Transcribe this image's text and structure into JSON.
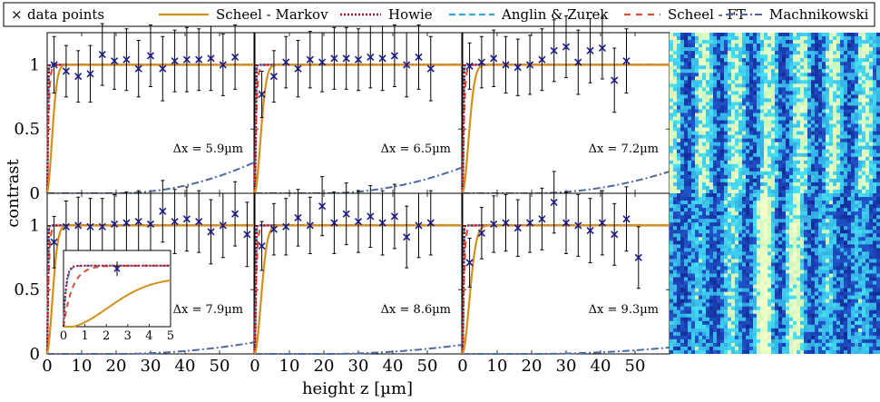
{
  "legend": [
    {
      "key": "data",
      "label": "data points"
    },
    {
      "key": "markov",
      "label": "Scheel - Markov"
    },
    {
      "key": "howie",
      "label": "Howie"
    },
    {
      "key": "anglin",
      "label": "Anglin & Zurek"
    },
    {
      "key": "scheelft",
      "label": "Scheel - FT"
    },
    {
      "key": "machni",
      "label": "Machnikowski"
    }
  ],
  "colors": {
    "data": "#1a1a8c",
    "markov": "#d4901a",
    "howie": "#b0102a",
    "anglin": "#3aa6d8",
    "scheelft": "#d8503a",
    "machni": "#4a6aa0",
    "errorbar": "#000000",
    "heat_bg": "#1f3aa8"
  },
  "chart_data": {
    "type": "scatter",
    "xlabel": "height z [µm]",
    "ylabel": "contrast",
    "xlim": [
      0,
      60
    ],
    "ylim": [
      0,
      1.25
    ],
    "x_ticks": [
      0,
      10,
      20,
      30,
      40,
      50
    ],
    "y_ticks": [
      0,
      0.5,
      1
    ],
    "y_tick_labels": [
      "0",
      "0.5",
      "1"
    ],
    "panels": [
      {
        "label": "Δx = 5.9µm",
        "markov_rate": 0.55,
        "machni_scale": 0.24,
        "points": [
          [
            2,
            1.0,
            0.22
          ],
          [
            5.5,
            0.95,
            0.2
          ],
          [
            9,
            0.91,
            0.2
          ],
          [
            12.5,
            0.93,
            0.22
          ],
          [
            16,
            1.08,
            0.24
          ],
          [
            19.5,
            1.03,
            0.22
          ],
          [
            23,
            1.04,
            0.24
          ],
          [
            26.5,
            0.97,
            0.22
          ],
          [
            30,
            1.07,
            0.24
          ],
          [
            33.5,
            0.97,
            0.25
          ],
          [
            37,
            1.03,
            0.24
          ],
          [
            40.5,
            1.04,
            0.25
          ],
          [
            44,
            1.04,
            0.24
          ],
          [
            47.5,
            1.05,
            0.25
          ],
          [
            51,
            1.0,
            0.24
          ],
          [
            54.5,
            1.06,
            0.25
          ]
        ]
      },
      {
        "label": "Δx = 6.5µm",
        "markov_rate": 0.42,
        "machni_scale": 0.2,
        "points": [
          [
            2,
            0.77,
            0.18
          ],
          [
            5.5,
            0.91,
            0.2
          ],
          [
            9,
            1.02,
            0.2
          ],
          [
            12.5,
            0.97,
            0.22
          ],
          [
            16,
            1.04,
            0.22
          ],
          [
            19.5,
            1.02,
            0.23
          ],
          [
            23,
            1.05,
            0.24
          ],
          [
            26.5,
            1.05,
            0.24
          ],
          [
            30,
            1.04,
            0.24
          ],
          [
            33.5,
            1.06,
            0.24
          ],
          [
            37,
            1.05,
            0.25
          ],
          [
            40.5,
            1.07,
            0.24
          ],
          [
            44,
            1.0,
            0.25
          ],
          [
            47.5,
            1.06,
            0.25
          ],
          [
            51,
            0.97,
            0.25
          ]
        ]
      },
      {
        "label": "Δx = 7.2µm",
        "markov_rate": 0.38,
        "machni_scale": 0.17,
        "points": [
          [
            2,
            0.99,
            0.18
          ],
          [
            5.5,
            1.02,
            0.2
          ],
          [
            9,
            1.05,
            0.22
          ],
          [
            12.5,
            1.0,
            0.22
          ],
          [
            16,
            0.98,
            0.22
          ],
          [
            19.5,
            1.0,
            0.23
          ],
          [
            23,
            1.04,
            0.24
          ],
          [
            26.5,
            1.11,
            0.24
          ],
          [
            30,
            1.14,
            0.24
          ],
          [
            33.5,
            1.02,
            0.25
          ],
          [
            37,
            1.11,
            0.25
          ],
          [
            40.5,
            1.13,
            0.24
          ],
          [
            44,
            0.88,
            0.25
          ],
          [
            47.5,
            1.03,
            0.25
          ]
        ]
      },
      {
        "label": "Δx = 7.9µm",
        "markov_rate": 0.48,
        "machni_scale": 0.09,
        "points": [
          [
            2,
            0.87,
            0.2
          ],
          [
            5.5,
            0.99,
            0.2
          ],
          [
            9,
            1.0,
            0.22
          ],
          [
            12.5,
            0.99,
            0.22
          ],
          [
            16,
            0.99,
            0.22
          ],
          [
            19.5,
            1.01,
            0.23
          ],
          [
            23,
            1.02,
            0.24
          ],
          [
            26.5,
            1.03,
            0.24
          ],
          [
            30,
            1.01,
            0.24
          ],
          [
            33.5,
            1.11,
            0.24
          ],
          [
            37,
            1.03,
            0.25
          ],
          [
            40.5,
            1.05,
            0.25
          ],
          [
            44,
            1.03,
            0.24
          ],
          [
            47.5,
            0.95,
            0.25
          ],
          [
            51,
            1.0,
            0.25
          ],
          [
            54.5,
            1.09,
            0.25
          ],
          [
            58,
            0.93,
            0.25
          ]
        ]
      },
      {
        "label": "Δx = 8.6µm",
        "markov_rate": 0.36,
        "machni_scale": 0.07,
        "points": [
          [
            2,
            0.84,
            0.19
          ],
          [
            5.5,
            0.97,
            0.2
          ],
          [
            9,
            0.99,
            0.22
          ],
          [
            12.5,
            1.06,
            0.22
          ],
          [
            16,
            1.0,
            0.22
          ],
          [
            19.5,
            1.15,
            0.23
          ],
          [
            23,
            1.02,
            0.24
          ],
          [
            26.5,
            1.09,
            0.24
          ],
          [
            30,
            1.03,
            0.24
          ],
          [
            33.5,
            1.07,
            0.24
          ],
          [
            37,
            1.02,
            0.25
          ],
          [
            40.5,
            1.07,
            0.25
          ],
          [
            44,
            0.91,
            0.24
          ],
          [
            47.5,
            1.0,
            0.25
          ],
          [
            51,
            1.02,
            0.25
          ]
        ]
      },
      {
        "label": "Δx = 9.3µm",
        "markov_rate": 0.3,
        "machni_scale": 0.05,
        "points": [
          [
            2,
            0.71,
            0.19
          ],
          [
            5.5,
            0.94,
            0.2
          ],
          [
            9,
            1.01,
            0.22
          ],
          [
            12.5,
            1.02,
            0.22
          ],
          [
            16,
            0.98,
            0.22
          ],
          [
            19.5,
            1.02,
            0.23
          ],
          [
            23,
            1.05,
            0.24
          ],
          [
            26.5,
            1.18,
            0.24
          ],
          [
            30,
            1.02,
            0.24
          ],
          [
            33.5,
            1.0,
            0.24
          ],
          [
            37,
            0.96,
            0.25
          ],
          [
            40.5,
            1.02,
            0.25
          ],
          [
            44,
            0.93,
            0.24
          ],
          [
            47.5,
            1.05,
            0.25
          ],
          [
            51,
            0.75,
            0.24
          ]
        ]
      }
    ],
    "inset": {
      "xlim": [
        0,
        5
      ],
      "x_ticks": [
        0,
        1,
        2,
        3,
        4,
        5
      ],
      "points": [
        [
          2.5,
          0.95,
          0.12
        ]
      ]
    }
  }
}
